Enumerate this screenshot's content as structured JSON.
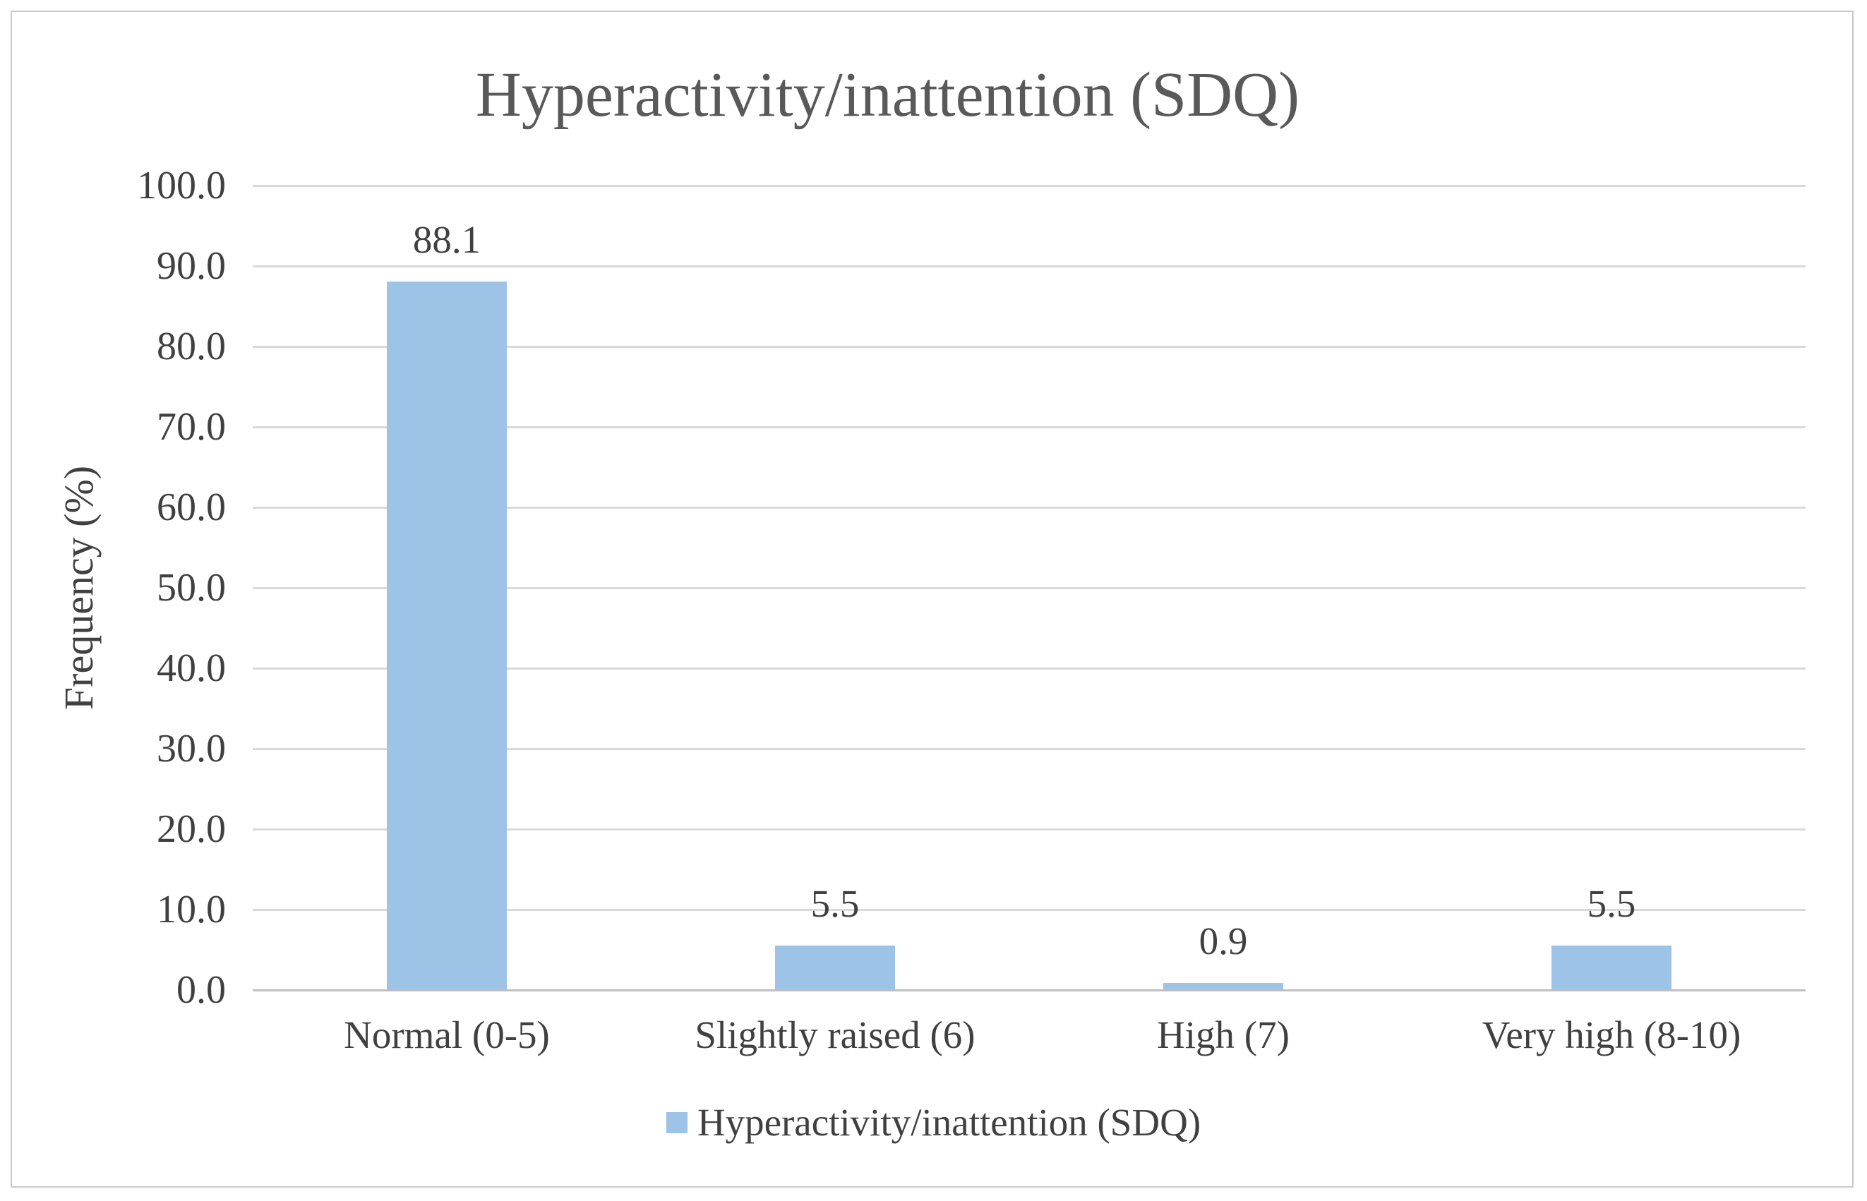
{
  "chart_data": {
    "type": "bar",
    "title": "Hyperactivity/inattention (SDQ)",
    "xlabel": "",
    "ylabel": "Frequency (%)",
    "categories": [
      "Normal (0-5)",
      "Slightly raised (6)",
      "High (7)",
      "Very high (8-10)"
    ],
    "values": [
      88.1,
      5.5,
      0.9,
      5.5
    ],
    "value_labels": [
      "88.1",
      "5.5",
      "0.9",
      "5.5"
    ],
    "ylim": [
      0,
      100
    ],
    "yticks": [
      {
        "v": 0,
        "label": "0.0"
      },
      {
        "v": 10,
        "label": "10.0"
      },
      {
        "v": 20,
        "label": "20.0"
      },
      {
        "v": 30,
        "label": "30.0"
      },
      {
        "v": 40,
        "label": "40.0"
      },
      {
        "v": 50,
        "label": "50.0"
      },
      {
        "v": 60,
        "label": "60.0"
      },
      {
        "v": 70,
        "label": "70.0"
      },
      {
        "v": 80,
        "label": "80.0"
      },
      {
        "v": 90,
        "label": "90.0"
      },
      {
        "v": 100,
        "label": "100.0"
      }
    ],
    "grid": "horizontal",
    "legend": {
      "position": "bottom",
      "label": "Hyperactivity/inattention (SDQ)"
    },
    "colors": {
      "bar": "#9dc3e6",
      "title_text": "#595959",
      "label_text": "#404040",
      "gridline": "#d9d9d9",
      "axis_line": "#bfbfbf",
      "frame_border": "#c9c9c9"
    }
  }
}
